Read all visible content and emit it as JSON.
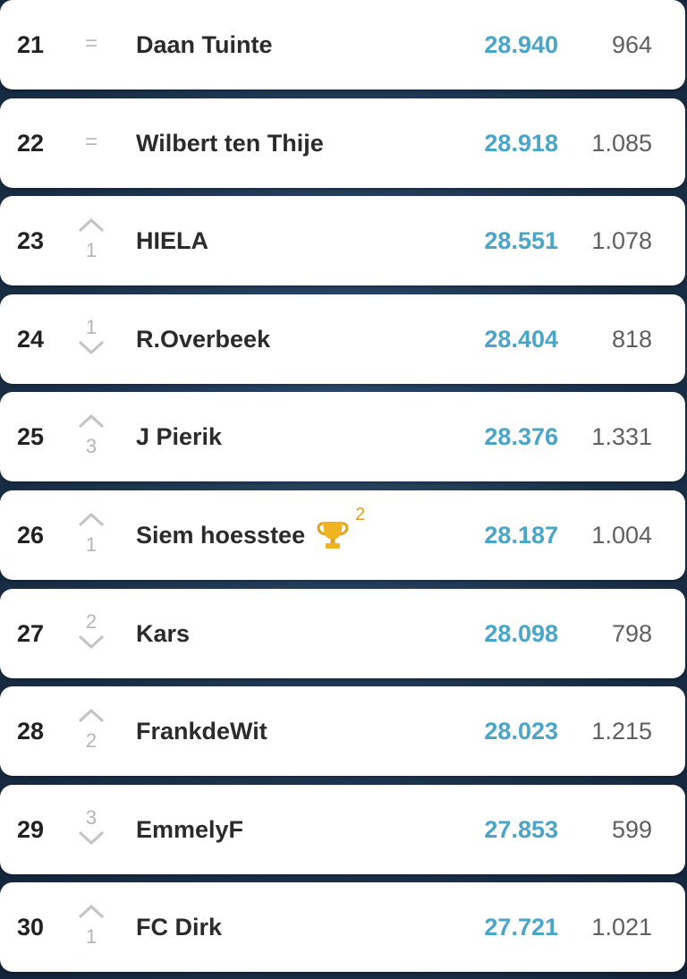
{
  "colors": {
    "score": "#4aa6c8",
    "movement": "#b5b5b5",
    "trophy": "#f0b323",
    "background": "#1b3149"
  },
  "rows": [
    {
      "rank": "21",
      "movement": "same",
      "change": "",
      "name": "Daan Tuinte",
      "score": "28.940",
      "extra": "964"
    },
    {
      "rank": "22",
      "movement": "same",
      "change": "",
      "name": "Wilbert ten Thije",
      "score": "28.918",
      "extra": "1.085"
    },
    {
      "rank": "23",
      "movement": "up",
      "change": "1",
      "name": "HIELA",
      "score": "28.551",
      "extra": "1.078"
    },
    {
      "rank": "24",
      "movement": "down",
      "change": "1",
      "name": "R.Overbeek",
      "score": "28.404",
      "extra": "818"
    },
    {
      "rank": "25",
      "movement": "up",
      "change": "3",
      "name": "J Pierik",
      "score": "28.376",
      "extra": "1.331"
    },
    {
      "rank": "26",
      "movement": "up",
      "change": "1",
      "name": "Siem hoesstee",
      "trophy_icon": "trophy-icon",
      "trophy_count": "2",
      "score": "28.187",
      "extra": "1.004"
    },
    {
      "rank": "27",
      "movement": "down",
      "change": "2",
      "name": "Kars",
      "score": "28.098",
      "extra": "798"
    },
    {
      "rank": "28",
      "movement": "up",
      "change": "2",
      "name": "FrankdeWit",
      "score": "28.023",
      "extra": "1.215"
    },
    {
      "rank": "29",
      "movement": "down",
      "change": "3",
      "name": "EmmelyF",
      "score": "27.853",
      "extra": "599"
    },
    {
      "rank": "30",
      "movement": "up",
      "change": "1",
      "name": "FC Dirk",
      "score": "27.721",
      "extra": "1.021"
    }
  ],
  "same_symbol": "="
}
